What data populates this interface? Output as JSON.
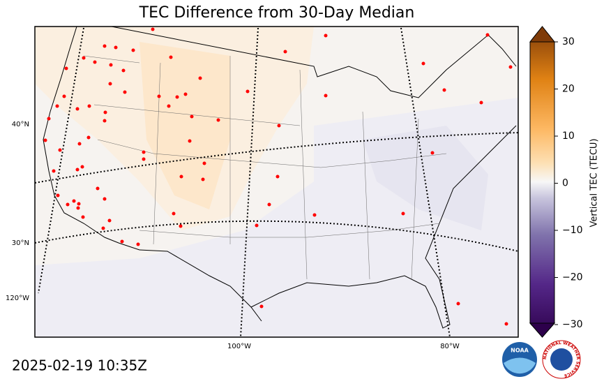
{
  "title": "TEC Difference from 30-Day Median",
  "timestamp": "2025-02-19 10:35Z",
  "colorbar": {
    "label": "Vertical TEC (TECU)",
    "lim": [
      -30,
      30
    ],
    "ticks": [
      {
        "value": -30,
        "label": "−30"
      },
      {
        "value": -20,
        "label": "−20"
      },
      {
        "value": -10,
        "label": "−10"
      },
      0,
      10,
      20,
      30
    ]
  },
  "lat_labels": [
    "40°N",
    "30°N"
  ],
  "lon_labels": [
    "120°W",
    "100°W",
    "80°W"
  ],
  "logos": {
    "noaa": "NOAA",
    "nws": "NATIONAL WEATHER SERVICE"
  }
}
